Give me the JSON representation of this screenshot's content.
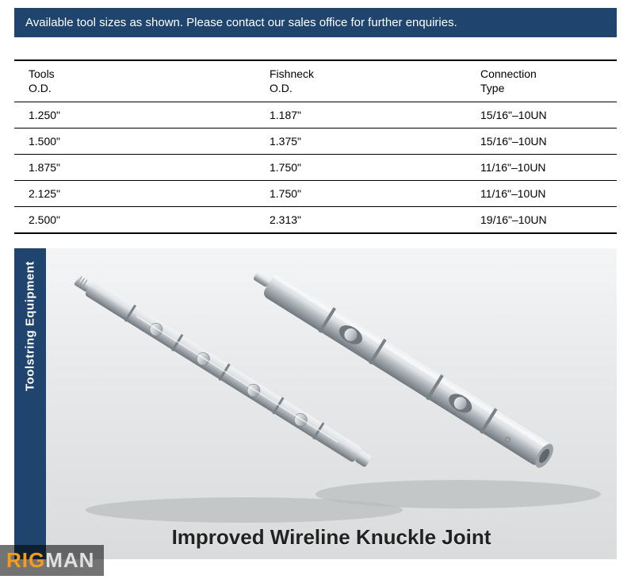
{
  "banner": {
    "text": "Available tool sizes as shown. Please contact our sales office for further enquiries.",
    "bg_color": "#1f456e",
    "text_color": "#ffffff"
  },
  "table": {
    "columns": [
      {
        "line1": "Tools",
        "line2": "O.D."
      },
      {
        "line1": "Fishneck",
        "line2": "O.D."
      },
      {
        "line1": "Connection",
        "line2": "Type"
      }
    ],
    "col_widths_pct": [
      40,
      35,
      25
    ],
    "rows": [
      [
        "1.250\"",
        "1.187\"",
        "15/16\"–10UN"
      ],
      [
        "1.500\"",
        "1.375\"",
        "15/16\"–10UN"
      ],
      [
        "1.875\"",
        "1.750\"",
        "11/16\"–10UN"
      ],
      [
        "2.125\"",
        "1.750\"",
        "11/16\"–10UN"
      ],
      [
        "2.500\"",
        "2.313\"",
        "19/16\"–10UN"
      ]
    ],
    "border_color": "#000000",
    "font_size": 14
  },
  "side_tab": {
    "label": "Toolstring Equipment",
    "bg_color": "#1f456e",
    "text_color": "#ffffff"
  },
  "product": {
    "caption": "Improved Wireline Knuckle Joint",
    "bg_gradient_top": "#f4f5f6",
    "bg_gradient_mid": "#e7e9ea",
    "bg_gradient_bottom": "#d9dbdc",
    "metal_light": "#f2f4f6",
    "metal_mid": "#c6cbd0",
    "metal_dark": "#8f969c",
    "shadow_color": "#b9bcbe"
  },
  "watermark": {
    "part1": "RIG",
    "part2": "MAN",
    "color1": "#f59c1a",
    "color2": "#e0e0e0",
    "bg": "rgba(0,0,0,0.55)"
  }
}
